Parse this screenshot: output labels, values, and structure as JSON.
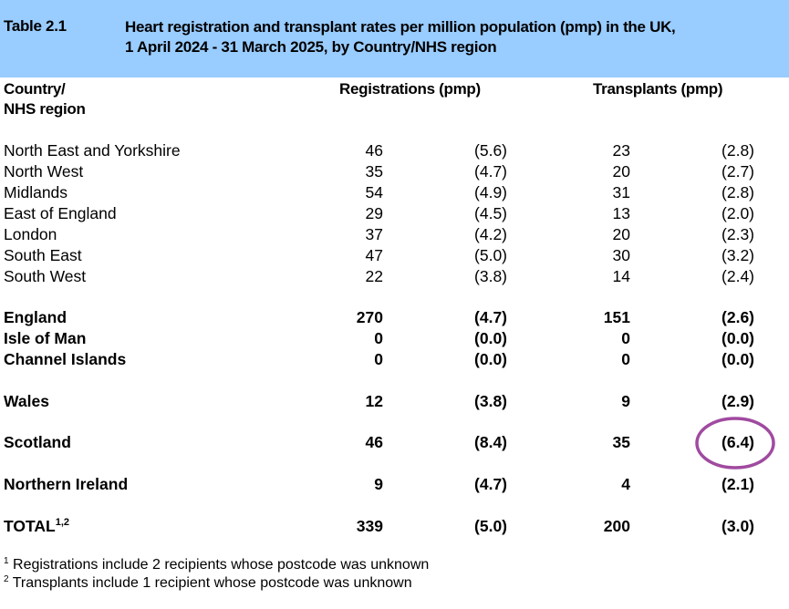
{
  "header": {
    "table_number": "Table 2.1",
    "title_line1": "Heart registration and transplant rates per million population (pmp) in the UK,",
    "title_line2": "1 April 2024 - 31 March 2025, by Country/NHS region"
  },
  "columns": {
    "region_line1": "Country/",
    "region_line2": "NHS region",
    "registrations": "Registrations (pmp)",
    "transplants": "Transplants (pmp)"
  },
  "rows": [
    {
      "region": "North East and Yorkshire",
      "reg": "46",
      "reg_pmp": "(5.6)",
      "tx": "23",
      "tx_pmp": "(2.8)",
      "bold": false
    },
    {
      "region": "North West",
      "reg": "35",
      "reg_pmp": "(4.7)",
      "tx": "20",
      "tx_pmp": "(2.7)",
      "bold": false
    },
    {
      "region": "Midlands",
      "reg": "54",
      "reg_pmp": "(4.9)",
      "tx": "31",
      "tx_pmp": "(2.8)",
      "bold": false
    },
    {
      "region": "East of England",
      "reg": "29",
      "reg_pmp": "(4.5)",
      "tx": "13",
      "tx_pmp": "(2.0)",
      "bold": false
    },
    {
      "region": "London",
      "reg": "37",
      "reg_pmp": "(4.2)",
      "tx": "20",
      "tx_pmp": "(2.3)",
      "bold": false
    },
    {
      "region": "South East",
      "reg": "47",
      "reg_pmp": "(5.0)",
      "tx": "30",
      "tx_pmp": "(3.2)",
      "bold": false
    },
    {
      "region": "South West",
      "reg": "22",
      "reg_pmp": "(3.8)",
      "tx": "14",
      "tx_pmp": "(2.4)",
      "bold": false
    },
    {
      "region": "England",
      "reg": "270",
      "reg_pmp": "(4.7)",
      "tx": "151",
      "tx_pmp": "(2.6)",
      "bold": true
    },
    {
      "region": "Isle of Man",
      "reg": "0",
      "reg_pmp": "(0.0)",
      "tx": "0",
      "tx_pmp": "(0.0)",
      "bold": true
    },
    {
      "region": "Channel Islands",
      "reg": "0",
      "reg_pmp": "(0.0)",
      "tx": "0",
      "tx_pmp": "(0.0)",
      "bold": true
    },
    {
      "region": "Wales",
      "reg": "12",
      "reg_pmp": "(3.8)",
      "tx": "9",
      "tx_pmp": "(2.9)",
      "bold": true
    },
    {
      "region": "Scotland",
      "reg": "46",
      "reg_pmp": "(8.4)",
      "tx": "35",
      "tx_pmp": "(6.4)",
      "bold": true,
      "highlighted": true
    },
    {
      "region": "Northern Ireland",
      "reg": "9",
      "reg_pmp": "(4.7)",
      "tx": "4",
      "tx_pmp": "(2.1)",
      "bold": true
    },
    {
      "region": "TOTAL",
      "region_sup": "1,2",
      "reg": "339",
      "reg_pmp": "(5.0)",
      "tx": "200",
      "tx_pmp": "(3.0)",
      "bold": true
    }
  ],
  "footnotes": [
    {
      "mark": "1",
      "text": "Registrations include 2 recipients whose postcode was unknown"
    },
    {
      "mark": "2",
      "text": "Transplants include 1 recipient whose postcode was unknown"
    }
  ],
  "colors": {
    "header_band": "#99ccff",
    "highlight_circle": "#a04aa0"
  }
}
